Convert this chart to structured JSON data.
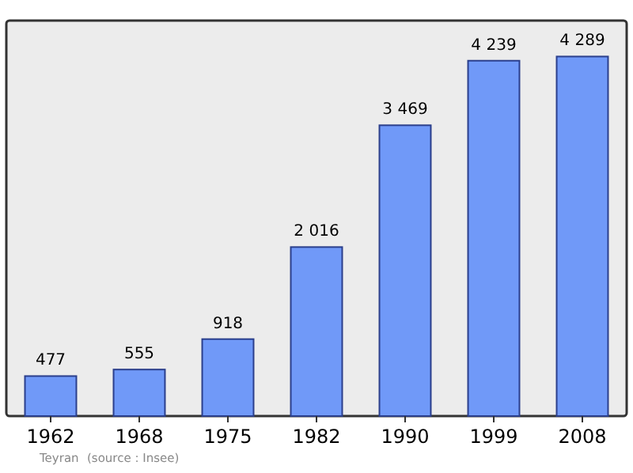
{
  "chart_data": {
    "type": "bar",
    "categories": [
      "1962",
      "1968",
      "1975",
      "1982",
      "1990",
      "1999",
      "2008"
    ],
    "values": [
      477,
      555,
      918,
      2016,
      3469,
      4239,
      4289
    ],
    "value_labels": [
      "477",
      "555",
      "918",
      "2 016",
      "3 469",
      "4 239",
      "4 289"
    ],
    "color": "#7099f8",
    "annotations": [
      "Teyran",
      "(source : Insee)"
    ]
  }
}
